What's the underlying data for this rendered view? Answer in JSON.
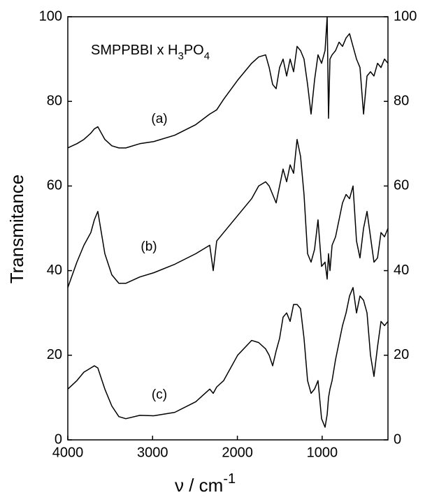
{
  "chart_data": {
    "type": "line",
    "title_parts": [
      "SMPPBBI x H",
      "3",
      "PO",
      "4"
    ],
    "y_label": "Transmitance",
    "x_label_parts": [
      "ν / cm",
      "-1"
    ],
    "x": [
      4000,
      3893,
      3810,
      3728,
      3687,
      3646,
      3563,
      3481,
      3398,
      3316,
      3151,
      2986,
      2739,
      2491,
      2326,
      2285,
      2244,
      2162,
      1997,
      1832,
      1749,
      1667,
      1625,
      1584,
      1543,
      1502,
      1461,
      1419,
      1378,
      1337,
      1296,
      1255,
      1214,
      1172,
      1131,
      1090,
      1049,
      1007,
      966,
      941,
      925,
      908,
      883,
      842,
      801,
      760,
      718,
      677,
      636,
      595,
      554,
      512,
      471,
      430,
      389,
      347,
      306,
      265,
      224
    ],
    "series": [
      {
        "name": "(a)",
        "color": "#000000",
        "values": [
          69,
          70,
          71,
          72.5,
          73.5,
          74,
          71,
          69.5,
          69,
          69,
          70,
          70.5,
          72,
          74.5,
          77,
          77.5,
          78,
          80.5,
          85,
          89,
          90.5,
          91,
          88,
          84,
          83,
          88,
          90,
          86,
          90,
          87,
          93,
          92,
          90,
          84,
          77,
          85,
          91,
          89,
          92,
          100,
          76,
          90,
          91,
          92,
          94,
          93,
          95,
          96,
          93,
          90,
          88,
          77,
          86,
          87,
          86,
          89,
          88,
          90,
          89
        ]
      },
      {
        "name": "(b)",
        "color": "#000000",
        "values": [
          36,
          42,
          46,
          49,
          52,
          54,
          44,
          39,
          37,
          37,
          38.5,
          39.5,
          41.5,
          44,
          46,
          40,
          47,
          49,
          53,
          57,
          60,
          61,
          60,
          58,
          56,
          60,
          64,
          61,
          65,
          63,
          71,
          67,
          58,
          44,
          42,
          45,
          52,
          41,
          42,
          38,
          44,
          40,
          46,
          48,
          52,
          56,
          58,
          57,
          60,
          47,
          43,
          50,
          54,
          48,
          42,
          43,
          49,
          48,
          50
        ]
      },
      {
        "name": "(c)",
        "color": "#000000",
        "values": [
          12,
          14,
          16,
          17,
          17.5,
          17,
          12,
          8,
          5.5,
          5,
          5.8,
          5.7,
          6.5,
          9,
          12,
          11,
          12.5,
          14,
          20,
          23.5,
          23,
          21.5,
          20,
          17.5,
          21,
          24,
          29,
          30,
          28,
          32,
          32,
          31,
          24,
          14,
          11,
          12,
          14,
          5,
          3,
          6,
          10,
          12,
          14,
          19,
          23,
          27,
          30,
          34,
          36,
          30,
          34,
          33,
          30,
          20,
          15,
          22,
          28,
          27,
          28
        ]
      }
    ],
    "xlim": [
      4000,
      224
    ],
    "xticks": [
      4000,
      3000,
      2000,
      1000
    ],
    "ylim": [
      0,
      100
    ],
    "yticks": [
      0,
      20,
      40,
      60,
      80,
      100
    ],
    "y2lim": [
      0,
      100
    ],
    "y2ticks": [
      0,
      20,
      40,
      60,
      80,
      100
    ]
  }
}
